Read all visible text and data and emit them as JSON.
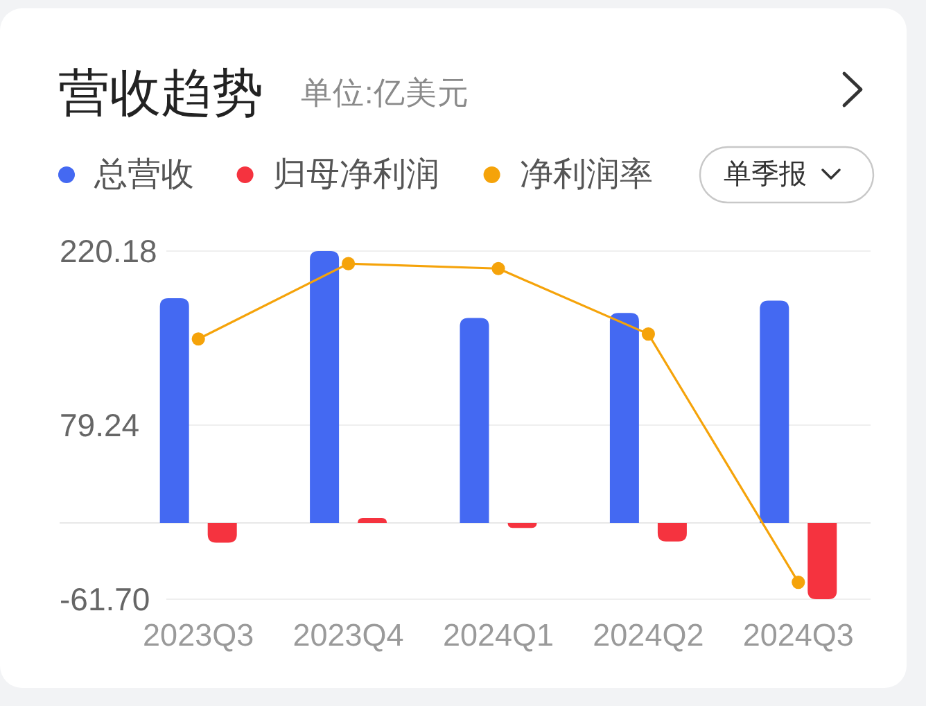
{
  "chart_data": {
    "type": "bar",
    "title": "营收趋势",
    "subtitle": "单位:亿美元",
    "categories": [
      "2023Q3",
      "2023Q4",
      "2024Q1",
      "2024Q2",
      "2024Q3"
    ],
    "series": [
      {
        "name": "总营收",
        "color": "#4469f2",
        "values": [
          182,
          220.18,
          166,
          170,
          180
        ]
      },
      {
        "name": "归母净利润",
        "color": "#f5333f",
        "values": [
          -16,
          4,
          -4,
          -15,
          -61.7
        ]
      },
      {
        "name": "净利润率",
        "type": "line",
        "color": "#f5a30a",
        "values": [
          149,
          210,
          206,
          153,
          -48
        ]
      }
    ],
    "ylim": [
      -61.7,
      220.18
    ],
    "yticks": [
      {
        "value": -61.7,
        "label": "-61.70"
      },
      79.24,
      220.18
    ],
    "grid": "y",
    "legend": "top left",
    "marker": "circle",
    "annotations": [
      "单季报"
    ]
  }
}
